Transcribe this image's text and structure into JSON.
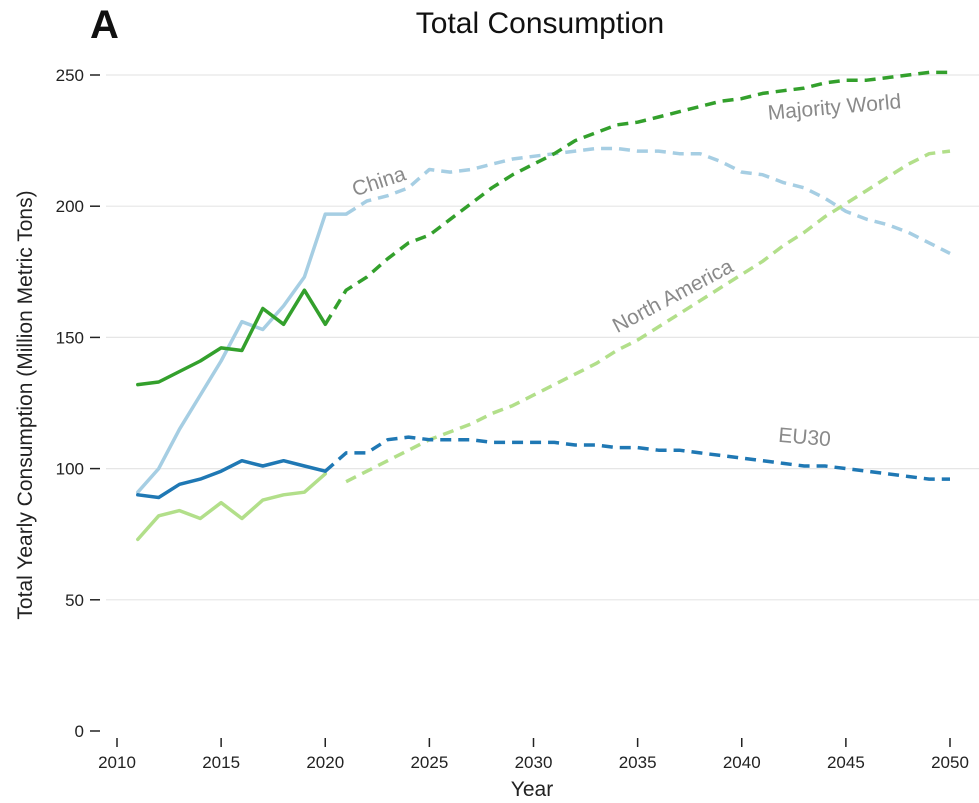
{
  "chart_data": {
    "type": "line",
    "panel_letter": "A",
    "title": "Total Consumption",
    "xlabel": "Year",
    "ylabel": "Total Yearly Consumption (Million Metric Tons)",
    "xlim": [
      2010,
      2050
    ],
    "ylim": [
      0,
      250
    ],
    "xticks": [
      2010,
      2015,
      2020,
      2025,
      2030,
      2035,
      2040,
      2045,
      2050
    ],
    "yticks": [
      0,
      50,
      100,
      150,
      200,
      250
    ],
    "grid": true,
    "series": [
      {
        "name": "China",
        "color": "#a6cee3",
        "historical": {
          "x": [
            2011,
            2012,
            2013,
            2014,
            2015,
            2016,
            2017,
            2018,
            2019,
            2020,
            2021
          ],
          "y": [
            91,
            100,
            115,
            128,
            141,
            156,
            153,
            162,
            173,
            197,
            197
          ]
        },
        "projected": {
          "x": [
            2021,
            2022,
            2023,
            2024,
            2025,
            2026,
            2027,
            2028,
            2029,
            2030,
            2031,
            2032,
            2033,
            2034,
            2035,
            2036,
            2037,
            2038,
            2039,
            2040,
            2041,
            2042,
            2043,
            2044,
            2045,
            2046,
            2047,
            2048,
            2049,
            2050
          ],
          "y": [
            197,
            202,
            204,
            207,
            214,
            213,
            214,
            216,
            218,
            219,
            220,
            221,
            222,
            222,
            221,
            221,
            220,
            220,
            217,
            213,
            212,
            209,
            207,
            203,
            198,
            195,
            193,
            190,
            186,
            182
          ]
        }
      },
      {
        "name": "Majority World",
        "color": "#33a02c",
        "historical": {
          "x": [
            2011,
            2012,
            2013,
            2014,
            2015,
            2016,
            2017,
            2018,
            2019,
            2020
          ],
          "y": [
            132,
            133,
            137,
            141,
            146,
            145,
            161,
            155,
            168,
            155
          ]
        },
        "projected": {
          "x": [
            2020,
            2021,
            2022,
            2023,
            2024,
            2025,
            2026,
            2027,
            2028,
            2029,
            2030,
            2031,
            2032,
            2033,
            2034,
            2035,
            2036,
            2037,
            2038,
            2039,
            2040,
            2041,
            2042,
            2043,
            2044,
            2045,
            2046,
            2047,
            2048,
            2049,
            2050
          ],
          "y": [
            155,
            168,
            173,
            180,
            186,
            189,
            195,
            201,
            207,
            212,
            216,
            220,
            225,
            228,
            231,
            232,
            234,
            236,
            238,
            240,
            241,
            243,
            244,
            245,
            247,
            248,
            248,
            249,
            250,
            251,
            251
          ]
        }
      },
      {
        "name": "North America",
        "color": "#b2df8a",
        "historical": {
          "x": [
            2011,
            2012,
            2013,
            2014,
            2015,
            2016,
            2017,
            2018,
            2019,
            2020
          ],
          "y": [
            73,
            82,
            84,
            81,
            87,
            81,
            88,
            90,
            91,
            98
          ]
        },
        "projected": {
          "x": [
            2021,
            2022,
            2023,
            2024,
            2025,
            2026,
            2027,
            2028,
            2029,
            2030,
            2031,
            2032,
            2033,
            2034,
            2035,
            2036,
            2037,
            2038,
            2039,
            2040,
            2041,
            2042,
            2043,
            2044,
            2045,
            2046,
            2047,
            2048,
            2049,
            2050
          ],
          "y": [
            95,
            99,
            103,
            107,
            111,
            114,
            117,
            121,
            124,
            128,
            132,
            136,
            140,
            145,
            149,
            154,
            159,
            164,
            169,
            174,
            179,
            185,
            190,
            196,
            201,
            206,
            211,
            216,
            220,
            221
          ]
        }
      },
      {
        "name": "EU30",
        "color": "#1f78b4",
        "historical": {
          "x": [
            2011,
            2012,
            2013,
            2014,
            2015,
            2016,
            2017,
            2018,
            2019,
            2020
          ],
          "y": [
            90,
            89,
            94,
            96,
            99,
            103,
            101,
            103,
            101,
            99
          ]
        },
        "projected": {
          "x": [
            2020,
            2021,
            2022,
            2023,
            2024,
            2025,
            2026,
            2027,
            2028,
            2029,
            2030,
            2031,
            2032,
            2033,
            2034,
            2035,
            2036,
            2037,
            2038,
            2039,
            2040,
            2041,
            2042,
            2043,
            2044,
            2045,
            2046,
            2047,
            2048,
            2049,
            2050
          ],
          "y": [
            99,
            106,
            106,
            111,
            112,
            111,
            111,
            111,
            110,
            110,
            110,
            110,
            109,
            109,
            108,
            108,
            107,
            107,
            106,
            105,
            104,
            103,
            102,
            101,
            101,
            100,
            99,
            98,
            97,
            96,
            96
          ]
        }
      }
    ],
    "annotations": [
      {
        "text": "China",
        "series": "China"
      },
      {
        "text": "Majority World",
        "series": "Majority World"
      },
      {
        "text": "North America",
        "series": "North America"
      },
      {
        "text": "EU30",
        "series": "EU30"
      }
    ]
  }
}
